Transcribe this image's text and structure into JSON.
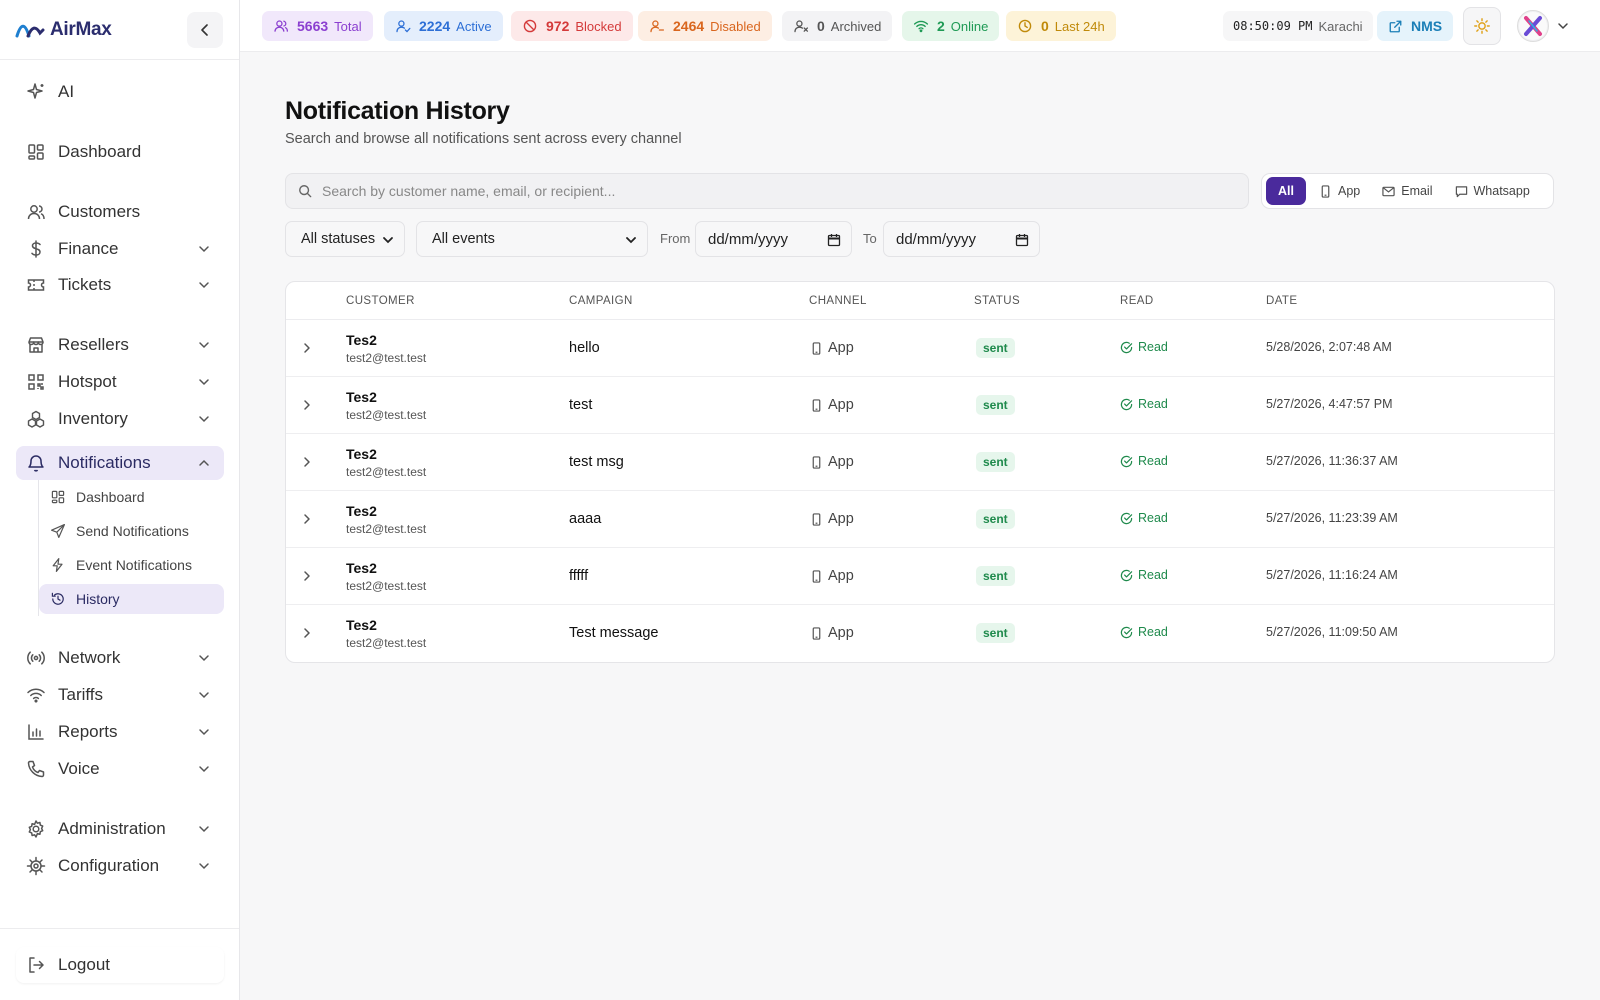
{
  "brand": {
    "name": "AirMax"
  },
  "sidebar": {
    "items": [
      {
        "label": "AI",
        "icon": "sparkles-icon"
      },
      {
        "label": "Dashboard",
        "icon": "dashboard-icon"
      },
      {
        "label": "Customers",
        "icon": "users-icon"
      },
      {
        "label": "Finance",
        "icon": "dollar-icon"
      },
      {
        "label": "Tickets",
        "icon": "ticket-icon"
      },
      {
        "label": "Resellers",
        "icon": "store-icon"
      },
      {
        "label": "Hotspot",
        "icon": "qr-code-icon"
      },
      {
        "label": "Inventory",
        "icon": "boxes-icon"
      },
      {
        "label": "Notifications",
        "icon": "bell-icon"
      },
      {
        "label": "Network",
        "icon": "broadcast-icon"
      },
      {
        "label": "Tariffs",
        "icon": "wifi-icon"
      },
      {
        "label": "Reports",
        "icon": "bar-chart-icon"
      },
      {
        "label": "Voice",
        "icon": "phone-icon"
      },
      {
        "label": "Administration",
        "icon": "gear-icon"
      },
      {
        "label": "Configuration",
        "icon": "cog-icon"
      }
    ],
    "sub_items": [
      {
        "label": "Dashboard",
        "icon": "dashboard-icon"
      },
      {
        "label": "Send Notifications",
        "icon": "send-icon"
      },
      {
        "label": "Event Notifications",
        "icon": "zap-icon"
      },
      {
        "label": "History",
        "icon": "history-icon"
      }
    ],
    "logout": "Logout"
  },
  "topbar": {
    "stats": [
      {
        "value": "5663",
        "label": "Total",
        "color": "#8b3fd0",
        "bg": "#f1e8fb"
      },
      {
        "value": "2224",
        "label": "Active",
        "color": "#2d6fd6",
        "bg": "#e4eefc"
      },
      {
        "value": "972",
        "label": "Blocked",
        "color": "#d43a3a",
        "bg": "#fde9e9"
      },
      {
        "value": "2464",
        "label": "Disabled",
        "color": "#d9661e",
        "bg": "#fdeee3"
      },
      {
        "value": "0",
        "label": "Archived",
        "color": "#555555",
        "bg": "#f3f3f5"
      },
      {
        "value": "2",
        "label": "Online",
        "color": "#1f9a55",
        "bg": "#e5f6ea"
      },
      {
        "value": "0",
        "label": "Last 24h",
        "color": "#c08a0a",
        "bg": "#fdf3d8"
      }
    ],
    "clock_time": "08:50:09 PM",
    "clock_tz": "Karachi",
    "nms_label": "NMS"
  },
  "page": {
    "title": "Notification History",
    "subtitle": "Search and browse all notifications sent across every channel"
  },
  "search": {
    "placeholder": "Search by customer name, email, or recipient..."
  },
  "channel_filter": {
    "options": [
      "All",
      "App",
      "Email",
      "Whatsapp"
    ],
    "selected": "All"
  },
  "filters": {
    "status": "All statuses",
    "event": "All events",
    "from_label": "From",
    "to_label": "To",
    "from_value": "dd/mm/yyyy",
    "to_value": "dd/mm/yyyy"
  },
  "table": {
    "columns": [
      "CUSTOMER",
      "CAMPAIGN",
      "CHANNEL",
      "STATUS",
      "READ",
      "DATE"
    ],
    "rows": [
      {
        "name": "Tes2",
        "email": "test2@test.test",
        "campaign": "hello",
        "channel": "App",
        "status": "sent",
        "read": "Read",
        "date": "5/28/2026, 2:07:48 AM"
      },
      {
        "name": "Tes2",
        "email": "test2@test.test",
        "campaign": "test",
        "channel": "App",
        "status": "sent",
        "read": "Read",
        "date": "5/27/2026, 4:47:57 PM"
      },
      {
        "name": "Tes2",
        "email": "test2@test.test",
        "campaign": "test msg",
        "channel": "App",
        "status": "sent",
        "read": "Read",
        "date": "5/27/2026, 11:36:37 AM"
      },
      {
        "name": "Tes2",
        "email": "test2@test.test",
        "campaign": "aaaa",
        "channel": "App",
        "status": "sent",
        "read": "Read",
        "date": "5/27/2026, 11:23:39 AM"
      },
      {
        "name": "Tes2",
        "email": "test2@test.test",
        "campaign": "fffff",
        "channel": "App",
        "status": "sent",
        "read": "Read",
        "date": "5/27/2026, 11:16:24 AM"
      },
      {
        "name": "Tes2",
        "email": "test2@test.test",
        "campaign": "Test message",
        "channel": "App",
        "status": "sent",
        "read": "Read",
        "date": "5/27/2026, 11:09:50 AM"
      }
    ]
  }
}
